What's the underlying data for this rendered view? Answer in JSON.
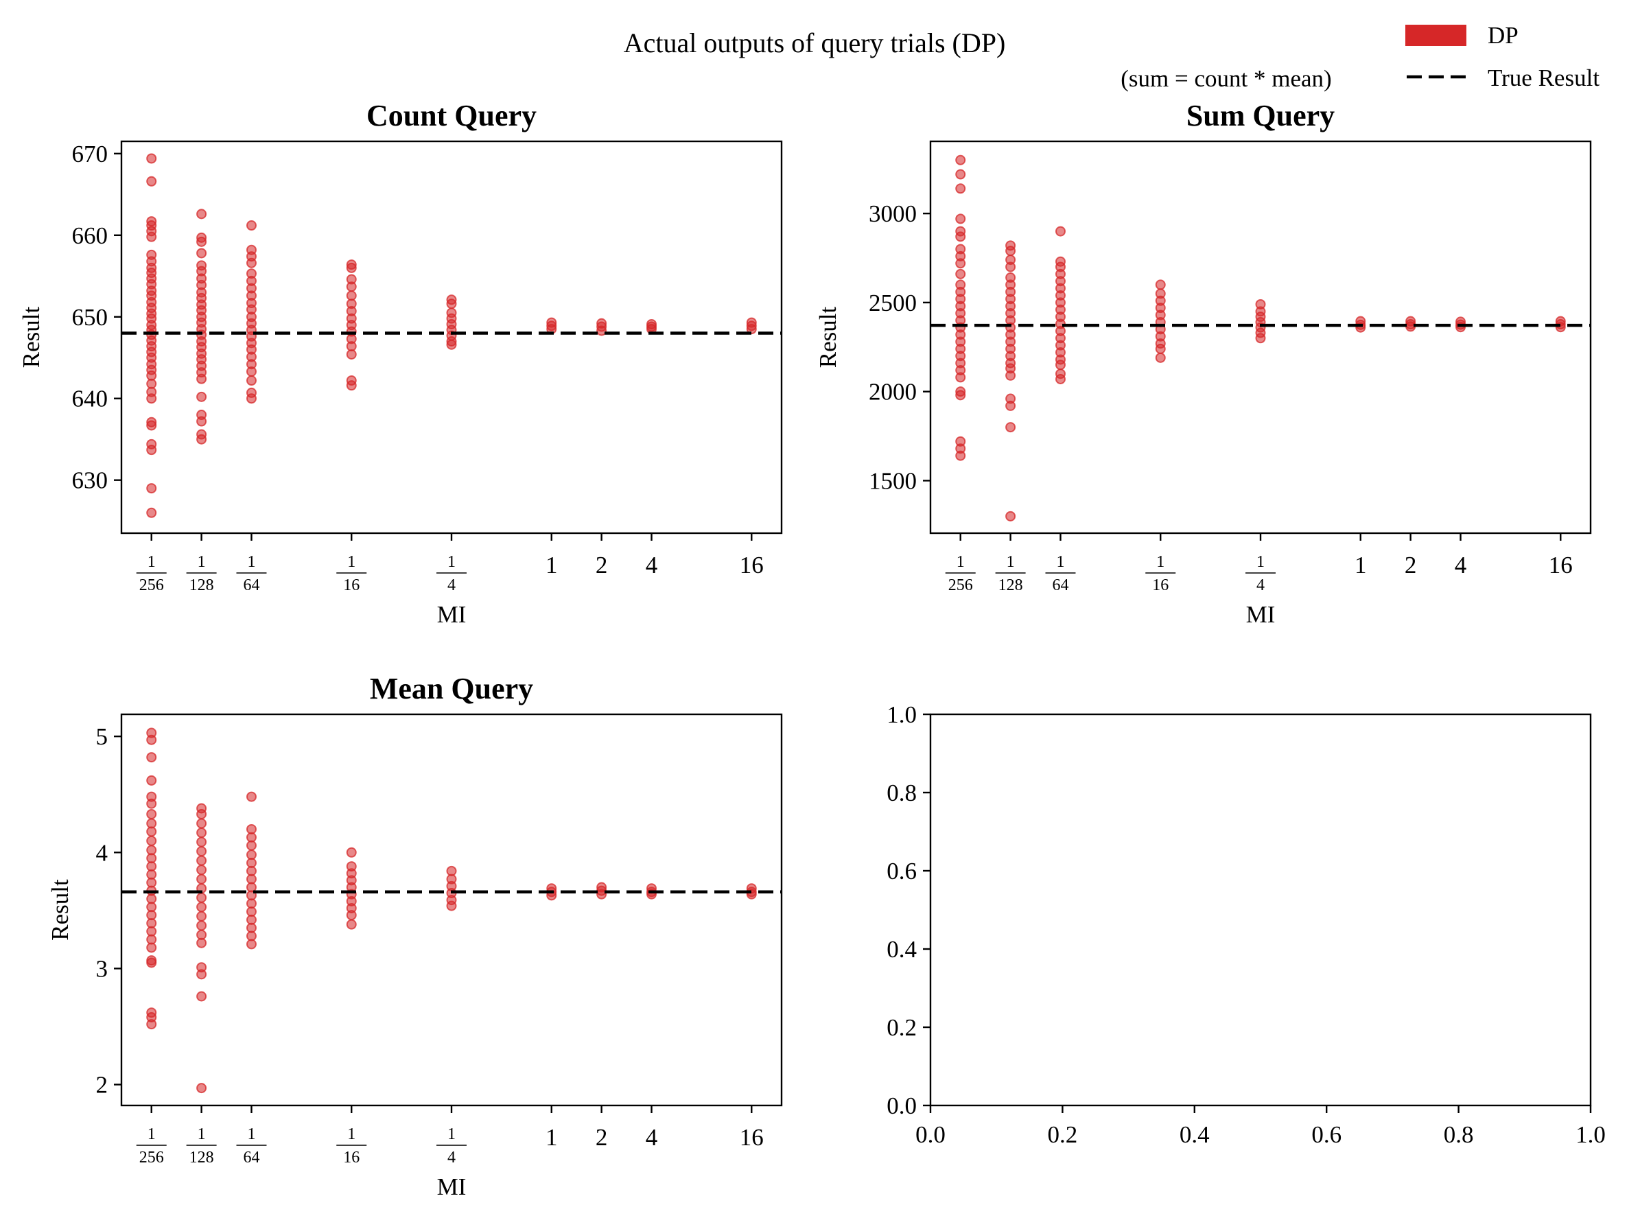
{
  "suptitle": "Actual outputs of query trials (DP)",
  "note": "(sum = count * mean)",
  "legend": {
    "position": "top-right",
    "items": [
      {
        "label": "DP",
        "kind": "patch",
        "color": "#d62728"
      },
      {
        "label": "True Result",
        "kind": "dashed-line",
        "color": "#000000"
      }
    ]
  },
  "colors": {
    "points": "#d62728",
    "true_line": "#000000",
    "axes": "#000000"
  },
  "chart_data": [
    {
      "type": "scatter",
      "title": "Count Query",
      "xlabel": "MI",
      "ylabel": "Result",
      "x_scale": "log2",
      "x_ticks": [
        {
          "value": 0.00390625,
          "num": "1",
          "den": "256"
        },
        {
          "value": 0.0078125,
          "num": "1",
          "den": "128"
        },
        {
          "value": 0.015625,
          "num": "1",
          "den": "64"
        },
        {
          "value": 0.0625,
          "num": "1",
          "den": "16"
        },
        {
          "value": 0.25,
          "num": "1",
          "den": "4"
        },
        {
          "value": 1,
          "label": "1"
        },
        {
          "value": 2,
          "label": "2"
        },
        {
          "value": 4,
          "label": "4"
        },
        {
          "value": 16,
          "label": "16"
        }
      ],
      "ylim": [
        623.5,
        671.5
      ],
      "y_ticks": [
        630,
        640,
        650,
        660,
        670
      ],
      "y_tick_labels": [
        "630",
        "640",
        "650",
        "660",
        "670"
      ],
      "true_result": 648,
      "series": [
        {
          "x": 0.00390625,
          "values": [
            669.4,
            666.6,
            661.7,
            661.2,
            660.5,
            659.8,
            657.6,
            656.8,
            656.0,
            655.4,
            654.7,
            654.0,
            653.2,
            652.6,
            651.8,
            651.1,
            650.4,
            649.8,
            649.0,
            648.4,
            647.8,
            647.1,
            646.4,
            645.7,
            645.0,
            644.2,
            643.5,
            642.8,
            641.8,
            640.8,
            640.0,
            637.1,
            636.7,
            634.4,
            633.7,
            629.0,
            626.0
          ]
        },
        {
          "x": 0.0078125,
          "values": [
            662.6,
            659.7,
            659.2,
            657.8,
            656.3,
            655.6,
            654.7,
            653.9,
            653.0,
            652.3,
            651.5,
            650.8,
            650.0,
            649.3,
            648.5,
            647.8,
            647.0,
            646.3,
            645.5,
            644.8,
            644.0,
            643.2,
            642.4,
            640.2,
            638.0,
            637.2,
            635.6,
            635.0
          ]
        },
        {
          "x": 0.015625,
          "values": [
            661.2,
            658.2,
            657.4,
            656.6,
            655.3,
            654.4,
            653.5,
            652.6,
            651.7,
            650.9,
            650.0,
            649.2,
            648.4,
            647.6,
            646.8,
            646.0,
            645.1,
            644.2,
            643.3,
            642.2,
            640.7,
            640.0
          ]
        },
        {
          "x": 0.0625,
          "values": [
            656.4,
            656.0,
            654.6,
            653.7,
            652.6,
            651.6,
            650.7,
            649.8,
            649.0,
            648.2,
            647.3,
            646.4,
            645.4,
            642.2,
            641.6
          ]
        },
        {
          "x": 0.25,
          "values": [
            652.1,
            651.6,
            650.5,
            649.8,
            649.1,
            648.4,
            647.7,
            647.0,
            646.6
          ]
        },
        {
          "x": 1,
          "values": [
            649.3,
            648.9,
            648.5
          ]
        },
        {
          "x": 2,
          "values": [
            649.2,
            648.8,
            648.3
          ]
        },
        {
          "x": 4,
          "values": [
            649.1,
            648.8,
            648.5
          ]
        },
        {
          "x": 16,
          "values": [
            649.3,
            648.9,
            648.5
          ]
        }
      ]
    },
    {
      "type": "scatter",
      "title": "Sum Query",
      "xlabel": "MI",
      "ylabel": "Result",
      "x_scale": "log2",
      "x_ticks": [
        {
          "value": 0.00390625,
          "num": "1",
          "den": "256"
        },
        {
          "value": 0.0078125,
          "num": "1",
          "den": "128"
        },
        {
          "value": 0.015625,
          "num": "1",
          "den": "64"
        },
        {
          "value": 0.0625,
          "num": "1",
          "den": "16"
        },
        {
          "value": 0.25,
          "num": "1",
          "den": "4"
        },
        {
          "value": 1,
          "label": "1"
        },
        {
          "value": 2,
          "label": "2"
        },
        {
          "value": 4,
          "label": "4"
        },
        {
          "value": 16,
          "label": "16"
        }
      ],
      "ylim": [
        1205,
        3405
      ],
      "y_ticks": [
        1500,
        2000,
        2500,
        3000
      ],
      "y_tick_labels": [
        "1500",
        "2000",
        "2500",
        "3000"
      ],
      "true_result": 2372,
      "series": [
        {
          "x": 0.00390625,
          "values": [
            3300,
            3220,
            3140,
            2970,
            2900,
            2870,
            2800,
            2760,
            2720,
            2660,
            2600,
            2560,
            2520,
            2480,
            2440,
            2400,
            2360,
            2320,
            2280,
            2240,
            2200,
            2160,
            2120,
            2080,
            2000,
            1980,
            1720,
            1680,
            1640
          ]
        },
        {
          "x": 0.0078125,
          "values": [
            2820,
            2790,
            2740,
            2700,
            2640,
            2600,
            2560,
            2520,
            2480,
            2440,
            2400,
            2360,
            2320,
            2280,
            2240,
            2200,
            2160,
            2130,
            2090,
            1960,
            1920,
            1800,
            1300
          ]
        },
        {
          "x": 0.015625,
          "values": [
            2900,
            2730,
            2700,
            2660,
            2620,
            2580,
            2540,
            2500,
            2460,
            2420,
            2380,
            2340,
            2300,
            2260,
            2220,
            2180,
            2150,
            2100,
            2070
          ]
        },
        {
          "x": 0.0625,
          "values": [
            2600,
            2550,
            2510,
            2470,
            2430,
            2390,
            2350,
            2310,
            2270,
            2240,
            2190
          ]
        },
        {
          "x": 0.25,
          "values": [
            2490,
            2450,
            2420,
            2390,
            2360,
            2330,
            2300
          ]
        },
        {
          "x": 1,
          "values": [
            2395,
            2375,
            2360
          ]
        },
        {
          "x": 2,
          "values": [
            2395,
            2378,
            2365
          ]
        },
        {
          "x": 4,
          "values": [
            2392,
            2376,
            2362
          ]
        },
        {
          "x": 16,
          "values": [
            2395,
            2378,
            2362
          ]
        }
      ]
    },
    {
      "type": "scatter",
      "title": "Mean Query",
      "xlabel": "MI",
      "ylabel": "Result",
      "x_scale": "log2",
      "x_ticks": [
        {
          "value": 0.00390625,
          "num": "1",
          "den": "256"
        },
        {
          "value": 0.0078125,
          "num": "1",
          "den": "128"
        },
        {
          "value": 0.015625,
          "num": "1",
          "den": "64"
        },
        {
          "value": 0.0625,
          "num": "1",
          "den": "16"
        },
        {
          "value": 0.25,
          "num": "1",
          "den": "4"
        },
        {
          "value": 1,
          "label": "1"
        },
        {
          "value": 2,
          "label": "2"
        },
        {
          "value": 4,
          "label": "4"
        },
        {
          "value": 16,
          "label": "16"
        }
      ],
      "ylim": [
        1.82,
        5.19
      ],
      "y_ticks": [
        2,
        3,
        4,
        5
      ],
      "y_tick_labels": [
        "2",
        "3",
        "4",
        "5"
      ],
      "true_result": 3.66,
      "series": [
        {
          "x": 0.00390625,
          "values": [
            5.03,
            4.97,
            4.82,
            4.62,
            4.48,
            4.42,
            4.33,
            4.25,
            4.18,
            4.1,
            4.02,
            3.95,
            3.88,
            3.81,
            3.74,
            3.67,
            3.6,
            3.53,
            3.46,
            3.39,
            3.32,
            3.25,
            3.18,
            3.07,
            3.05,
            2.62,
            2.58,
            2.52
          ]
        },
        {
          "x": 0.0078125,
          "values": [
            4.38,
            4.33,
            4.25,
            4.17,
            4.09,
            4.01,
            3.93,
            3.85,
            3.77,
            3.69,
            3.61,
            3.53,
            3.45,
            3.37,
            3.29,
            3.22,
            3.01,
            2.95,
            2.76,
            1.97
          ]
        },
        {
          "x": 0.015625,
          "values": [
            4.48,
            4.2,
            4.13,
            4.06,
            3.98,
            3.91,
            3.84,
            3.77,
            3.7,
            3.63,
            3.56,
            3.49,
            3.42,
            3.35,
            3.28,
            3.21
          ]
        },
        {
          "x": 0.0625,
          "values": [
            4.0,
            3.88,
            3.82,
            3.76,
            3.7,
            3.64,
            3.58,
            3.52,
            3.46,
            3.38
          ]
        },
        {
          "x": 0.25,
          "values": [
            3.84,
            3.77,
            3.71,
            3.65,
            3.59,
            3.54
          ]
        },
        {
          "x": 1,
          "values": [
            3.69,
            3.66,
            3.63
          ]
        },
        {
          "x": 2,
          "values": [
            3.7,
            3.67,
            3.64
          ]
        },
        {
          "x": 4,
          "values": [
            3.69,
            3.66,
            3.64
          ]
        },
        {
          "x": 16,
          "values": [
            3.69,
            3.66,
            3.64
          ]
        }
      ]
    },
    {
      "type": "scatter",
      "title": "",
      "xlabel": "",
      "ylabel": "",
      "xlim": [
        0,
        1
      ],
      "ylim": [
        0,
        1
      ],
      "x_tick_values": [
        0,
        0.2,
        0.4,
        0.6,
        0.8,
        1
      ],
      "x_tick_labels": [
        "0.0",
        "0.2",
        "0.4",
        "0.6",
        "0.8",
        "1.0"
      ],
      "y_ticks": [
        0,
        0.2,
        0.4,
        0.6,
        0.8,
        1
      ],
      "y_tick_labels": [
        "0.0",
        "0.2",
        "0.4",
        "0.6",
        "0.8",
        "1.0"
      ],
      "series": []
    }
  ]
}
